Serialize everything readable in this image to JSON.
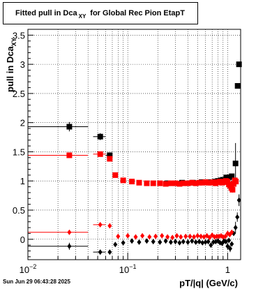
{
  "title": {
    "main": "Fitted pull in Dca",
    "subscript": "XY",
    "suffix": "for Global Rec Pion EtapT"
  },
  "footer": {
    "timestamp": "Sun Jun 29 06:43:28 2025"
  },
  "colors": {
    "pull_mean": "#000000",
    "pull_width": "#000000",
    "pull_mean_red": "#ff0000",
    "pull_width_red": "#ff0000"
  },
  "chart_data": {
    "type": "scatter",
    "title": "Fitted pull in Dca XY for Global Rec Pion EtapT",
    "xlabel": "pT/|q| (GeV/c)",
    "ylabel": "pull in Dca XY",
    "xscale": "log",
    "xlim": [
      0.01,
      1.35
    ],
    "ylim": [
      -0.35,
      3.6
    ],
    "grid": true,
    "x_tick_labels": [
      {
        "v": 0.01,
        "base": "10",
        "exp": "−2"
      },
      {
        "v": 0.1,
        "base": "10",
        "exp": "−1"
      },
      {
        "v": 1,
        "base": "1",
        "exp": ""
      }
    ],
    "y_ticks": [
      0,
      0.5,
      1,
      1.5,
      2,
      2.5,
      3,
      3.5
    ],
    "y_tick_labels": [
      "0",
      "0.5",
      "1",
      "1.5",
      "2",
      "2.5",
      "3",
      "3.5"
    ],
    "series": [
      {
        "marker": "square",
        "color": "#000000",
        "size": 8,
        "x": [
          0.026,
          0.053,
          0.066,
          0.25,
          0.35,
          0.45,
          0.55,
          0.65,
          0.75,
          0.8,
          0.85,
          0.9,
          0.97,
          1.03,
          1.1,
          1.2,
          1.26,
          1.3
        ],
        "y": [
          1.93,
          1.76,
          1.44,
          0.96,
          0.97,
          0.97,
          0.98,
          0.98,
          0.99,
          1.0,
          1.01,
          1.02,
          1.06,
          1.06,
          1.08,
          1.3,
          2.63,
          3.0
        ],
        "xerr": [
          [
            0.01,
            0.04
          ],
          [
            0.045,
            0.06
          ],
          [
            0.06,
            0.07
          ],
          null,
          null,
          null,
          null,
          null,
          null,
          null,
          null,
          null,
          null,
          null,
          null,
          null,
          null,
          null
        ],
        "yerr": [
          0.08,
          0.06,
          0.04,
          0,
          0,
          0,
          0,
          0,
          0,
          0,
          0,
          0,
          0,
          0,
          0,
          0.35,
          0,
          0
        ]
      },
      {
        "marker": "square",
        "color": "#ff0000",
        "size": 8,
        "x": [
          0.026,
          0.053,
          0.066,
          0.075,
          0.09,
          0.11,
          0.13,
          0.155,
          0.18,
          0.21,
          0.24,
          0.27,
          0.3,
          0.33,
          0.36,
          0.4,
          0.44,
          0.48,
          0.52,
          0.56,
          0.6,
          0.64,
          0.68,
          0.72,
          0.76,
          0.8,
          0.84,
          0.88,
          0.92,
          0.96,
          1.0,
          1.03,
          1.06,
          1.09,
          1.12,
          1.15,
          1.18,
          1.21
        ],
        "y": [
          1.44,
          1.46,
          1.38,
          1.1,
          1.01,
          0.99,
          0.97,
          0.96,
          0.96,
          0.96,
          0.95,
          0.96,
          0.96,
          0.95,
          0.96,
          0.96,
          0.97,
          0.96,
          0.97,
          0.97,
          0.98,
          0.97,
          0.97,
          0.98,
          0.96,
          0.98,
          0.99,
          0.97,
          0.98,
          1.0,
          0.99,
          0.94,
          0.92,
          0.88,
          0.85,
          0.95,
          1.01,
          0.99
        ],
        "xerr": [
          [
            0.01,
            0.04
          ],
          [
            0.045,
            0.06
          ],
          null,
          null,
          null,
          null,
          null,
          null,
          null,
          null,
          null,
          null,
          null,
          null,
          null,
          null,
          null,
          null,
          null,
          null,
          null,
          null,
          null,
          null,
          null,
          null,
          null,
          null,
          null,
          null,
          null,
          null,
          null,
          null,
          null,
          null,
          null,
          null
        ],
        "yerr": [
          0.04,
          0.03,
          0,
          0,
          0,
          0,
          0,
          0,
          0,
          0,
          0,
          0,
          0,
          0,
          0,
          0,
          0,
          0,
          0,
          0,
          0,
          0,
          0,
          0,
          0,
          0,
          0,
          0,
          0,
          0,
          0,
          0,
          0,
          0.05,
          0.05,
          0.05,
          0.04,
          0.04
        ]
      },
      {
        "marker": "diamond",
        "color": "#000000",
        "size": 6,
        "x": [
          0.026,
          0.053,
          0.066,
          0.075,
          0.09,
          0.11,
          0.13,
          0.155,
          0.18,
          0.21,
          0.24,
          0.27,
          0.3,
          0.33,
          0.36,
          0.4,
          0.44,
          0.48,
          0.52,
          0.56,
          0.6,
          0.64,
          0.68,
          0.72,
          0.76,
          0.8,
          0.84,
          0.88,
          0.92,
          0.96,
          1.0,
          1.03,
          1.06,
          1.1,
          1.15,
          1.2,
          1.25,
          1.3
        ],
        "y": [
          -0.12,
          -0.22,
          -0.22,
          -0.09,
          -0.06,
          -0.03,
          -0.05,
          -0.03,
          -0.04,
          -0.05,
          -0.03,
          -0.05,
          -0.04,
          -0.06,
          -0.04,
          -0.05,
          -0.03,
          -0.05,
          -0.04,
          -0.06,
          -0.05,
          -0.04,
          -0.1,
          -0.05,
          -0.04,
          -0.03,
          -0.06,
          -0.07,
          -0.03,
          -0.04,
          -0.12,
          -0.02,
          -0.16,
          -0.08,
          0.1,
          0.2,
          0.38,
          0.67
        ],
        "xerr": [
          [
            0.01,
            0.04
          ],
          [
            0.045,
            0.06
          ],
          null,
          null,
          null,
          null,
          null,
          null,
          null,
          null,
          null,
          null,
          null,
          null,
          null,
          null,
          null,
          null,
          null,
          null,
          null,
          null,
          null,
          null,
          null,
          null,
          null,
          null,
          null,
          null,
          null,
          null,
          null,
          null,
          null,
          null,
          null,
          null
        ],
        "yerr": [
          0.06,
          0.04,
          0,
          0,
          0,
          0,
          0,
          0,
          0,
          0,
          0,
          0,
          0,
          0,
          0,
          0,
          0,
          0,
          0,
          0,
          0,
          0,
          0,
          0,
          0,
          0,
          0,
          0,
          0,
          0,
          0.06,
          0,
          0.06,
          0,
          0,
          0.1,
          0.08,
          0.1
        ]
      },
      {
        "marker": "diamond",
        "color": "#ff0000",
        "size": 6,
        "x": [
          0.026,
          0.053,
          0.066,
          0.08,
          0.1,
          0.12,
          0.14,
          0.165,
          0.19,
          0.22,
          0.25,
          0.28,
          0.31,
          0.34,
          0.38,
          0.42,
          0.46,
          0.5,
          0.54,
          0.58,
          0.62,
          0.66,
          0.7,
          0.74,
          0.78,
          0.82,
          0.86,
          0.9,
          0.95,
          1.0,
          1.05,
          1.1
        ],
        "y": [
          0.12,
          0.25,
          0.23,
          0.05,
          0.06,
          0.04,
          0.06,
          0.04,
          0.05,
          0.06,
          0.04,
          0.03,
          0.06,
          0.04,
          0.05,
          0.05,
          0.04,
          0.06,
          0.05,
          0.04,
          0.06,
          0.03,
          0.07,
          0.04,
          0.05,
          0.05,
          0.06,
          0.04,
          0.05,
          0.1,
          0.08,
          0.12
        ],
        "xerr": [
          [
            0.01,
            0.04
          ],
          [
            0.045,
            0.06
          ],
          null,
          null,
          null,
          null,
          null,
          null,
          null,
          null,
          null,
          null,
          null,
          null,
          null,
          null,
          null,
          null,
          null,
          null,
          null,
          null,
          null,
          null,
          null,
          null,
          null,
          null,
          null,
          null,
          null,
          null
        ],
        "yerr": [
          0.03,
          0.02,
          0,
          0,
          0,
          0,
          0,
          0,
          0,
          0,
          0,
          0,
          0,
          0,
          0,
          0,
          0,
          0,
          0,
          0,
          0,
          0,
          0,
          0,
          0,
          0,
          0,
          0,
          0,
          0.04,
          0,
          0.04
        ]
      }
    ]
  }
}
